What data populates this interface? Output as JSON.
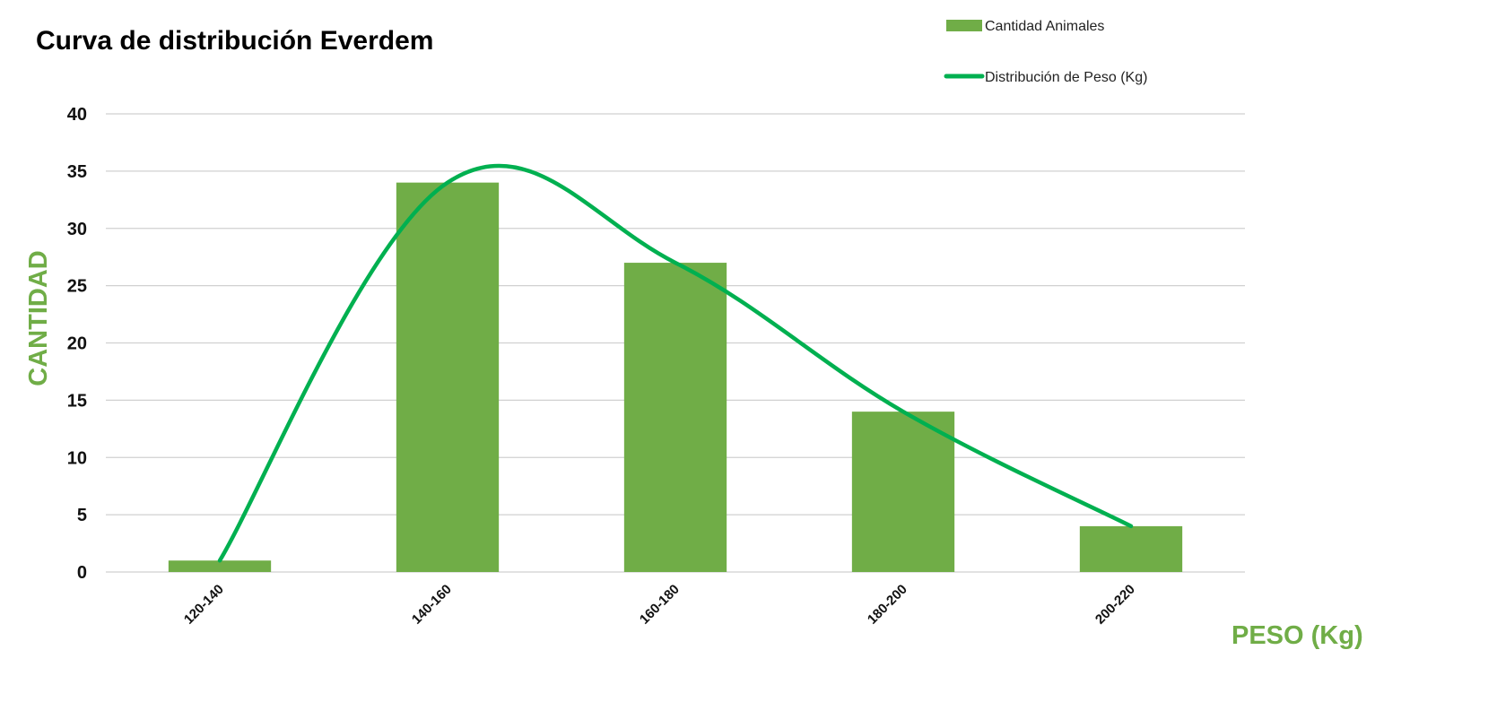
{
  "chart_data": {
    "type": "bar",
    "title": "Curva de distribución Everdem",
    "xlabel": "PESO (Kg)",
    "ylabel": "CANTIDAD",
    "categories": [
      "120-140",
      "140-160",
      "160-180",
      "180-200",
      "200-220"
    ],
    "series": [
      {
        "name": "Cantidad Animales",
        "type": "bar",
        "values": [
          1,
          34,
          27,
          14,
          4
        ],
        "color": "#70ad47"
      },
      {
        "name": "Distribución de Peso (Kg)",
        "type": "line",
        "smooth": true,
        "values": [
          1,
          34,
          27,
          14,
          4
        ],
        "color": "#00b050"
      }
    ],
    "ylim": [
      0,
      40
    ],
    "yticks": [
      0,
      5,
      10,
      15,
      20,
      25,
      30,
      35,
      40
    ],
    "grid": true,
    "legend": "top-right",
    "colors": {
      "axis_title": "#70ad47",
      "grid": "#d0d0d0"
    }
  }
}
